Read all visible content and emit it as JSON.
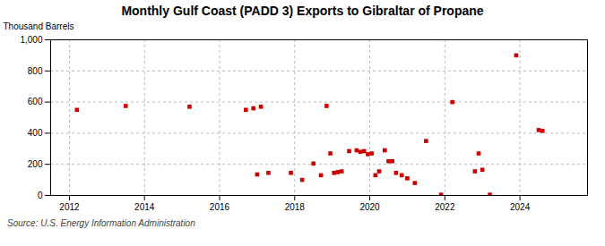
{
  "chart_data": {
    "type": "scatter",
    "title": "Monthly Gulf Coast (PADD 3) Exports to Gibraltar of Propane",
    "ylabel": "Thousand Barrels",
    "source": "Source: U.S. Energy Information Administration",
    "color": "#cc0000",
    "marker": "square",
    "grid": true,
    "xlim": [
      2011.5,
      2025.8
    ],
    "ylim": [
      0,
      1000
    ],
    "xticks": [
      2012,
      2014,
      2016,
      2018,
      2020,
      2022,
      2024
    ],
    "yticks": [
      0,
      200,
      400,
      600,
      800,
      {
        "value": 1000,
        "label": "1,000"
      }
    ],
    "x": [
      2012.2,
      2013.5,
      2015.2,
      2016.7,
      2016.9,
      2017.1,
      2017.0,
      2017.3,
      2017.9,
      2018.2,
      2018.5,
      2018.7,
      2018.85,
      2018.95,
      2019.05,
      2019.15,
      2019.25,
      2019.45,
      2019.65,
      2019.75,
      2019.85,
      2019.95,
      2020.05,
      2020.15,
      2020.25,
      2020.4,
      2020.5,
      2020.6,
      2020.7,
      2020.85,
      2021.0,
      2021.2,
      2021.5,
      2021.9,
      2022.2,
      2022.8,
      2022.9,
      2023.0,
      2023.2,
      2023.9,
      2024.5,
      2024.6
    ],
    "values": [
      550,
      575,
      570,
      550,
      560,
      570,
      135,
      145,
      145,
      100,
      205,
      130,
      575,
      270,
      145,
      150,
      155,
      285,
      290,
      280,
      285,
      265,
      270,
      130,
      155,
      290,
      220,
      220,
      145,
      130,
      110,
      80,
      350,
      5,
      600,
      155,
      270,
      165,
      5,
      900,
      420,
      415
    ]
  }
}
